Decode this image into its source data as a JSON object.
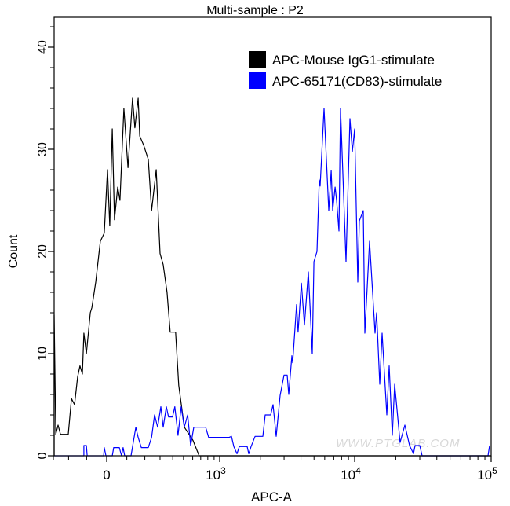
{
  "chart_data": {
    "type": "line",
    "title": "Multi-sample : P2",
    "xlabel": "APC-A",
    "ylabel": "Count",
    "x_scale": "biexponential",
    "xlim": [
      -300,
      100000
    ],
    "ylim": [
      0,
      42
    ],
    "x_ticks": [
      {
        "value": 0,
        "label": "0"
      },
      {
        "value": 1000,
        "label": "10",
        "exp": "3"
      },
      {
        "value": 10000,
        "label": "10",
        "exp": "4"
      },
      {
        "value": 100000,
        "label": "10",
        "exp": "5"
      }
    ],
    "y_ticks": [
      0,
      10,
      20,
      30,
      40
    ],
    "grid": false,
    "legend_position": "top-right",
    "watermark": "WWW.PTGLAB.COM",
    "series": [
      {
        "name": "APC-Mouse IgG1-stimulate",
        "color": "#000000",
        "x": [
          -297,
          -295,
          -283,
          -267,
          -251,
          -202,
          -183,
          -165,
          -148,
          -135,
          -122,
          -114,
          -101,
          -81,
          -73,
          -54,
          -31,
          -12,
          4,
          15,
          27,
          38,
          54,
          65,
          85,
          106,
          130,
          143,
          161,
          170,
          193,
          221,
          242,
          273,
          300,
          323,
          353,
          378,
          425,
          454,
          508,
          551,
          604,
          679,
          100000
        ],
        "y": [
          0,
          13.8,
          2.1,
          3.0,
          2.1,
          2.1,
          5.6,
          5.0,
          7.7,
          8.8,
          8.0,
          12.0,
          10.0,
          14.0,
          14.5,
          17.0,
          21.0,
          21.8,
          28.0,
          22.5,
          32.0,
          23.1,
          26.3,
          25.0,
          34.0,
          28.2,
          35.0,
          32.1,
          35.0,
          31.3,
          30.4,
          29.0,
          24.0,
          28.0,
          19.8,
          18.7,
          16.0,
          12.1,
          12.1,
          6.9,
          2.8,
          2.2,
          1.5,
          0,
          0
        ]
      },
      {
        "name": "APC-65171(CD83)-stimulate",
        "color": "#0000ff",
        "x": [
          -297,
          -114,
          -114,
          -101,
          -97,
          -15,
          -12,
          -4,
          27,
          34,
          62,
          73,
          81,
          89,
          122,
          148,
          161,
          179,
          221,
          242,
          262,
          283,
          306,
          323,
          347,
          365,
          398,
          418,
          447,
          477,
          508,
          544,
          577,
          613,
          722,
          768,
          813,
          1175,
          1222,
          1273,
          1343,
          1397,
          1597,
          1641,
          1709,
          1828,
          2089,
          2173,
          2388,
          2485,
          2622,
          2803,
          2998,
          3162,
          3250,
          3428,
          3475,
          3715,
          3811,
          4027,
          4246,
          4540,
          4853,
          4989,
          5260,
          5470,
          5546,
          5929,
          6427,
          6699,
          6871,
          7161,
          7345,
          7656,
          7855,
          8630,
          9226,
          9616,
          10000,
          10544,
          10827,
          11566,
          11877,
          12860,
          14102,
          14484,
          15271,
          15887,
          17210,
          17900,
          18880,
          19640,
          21530,
          23330,
          25240,
          26980,
          27720,
          29980,
          31190,
          94860,
          97450
        ],
        "y": [
          0,
          0,
          1,
          1,
          0,
          0,
          0.8,
          0,
          0,
          0.8,
          0.8,
          0,
          0.8,
          0,
          0,
          2.8,
          1.8,
          0.8,
          0.8,
          1.8,
          4.0,
          2.8,
          4.8,
          2.8,
          4.8,
          3.8,
          3.8,
          4.8,
          2.0,
          4.8,
          2.8,
          4.0,
          1.0,
          2.8,
          2.8,
          2.8,
          1.8,
          1.8,
          1.9,
          0.9,
          0.2,
          0.9,
          0.9,
          0.2,
          0.9,
          1.9,
          1.9,
          4.0,
          4.0,
          5.0,
          1.9,
          5.9,
          7.9,
          7.9,
          6.0,
          9.8,
          9.1,
          14.8,
          12.1,
          16.9,
          12.8,
          18.0,
          10.0,
          19.0,
          20.0,
          27.0,
          26.4,
          34.0,
          24.0,
          27.9,
          24.0,
          26.3,
          25.0,
          22.0,
          34.0,
          19.0,
          33.0,
          29.8,
          32.0,
          17.0,
          23.0,
          24.0,
          12.0,
          21.0,
          12.0,
          14.0,
          7.0,
          12.0,
          4.0,
          8.8,
          2.0,
          7.0,
          1.3,
          3.0,
          1.0,
          0.2,
          1.0,
          1.0,
          0,
          0,
          1.0
        ]
      }
    ]
  }
}
